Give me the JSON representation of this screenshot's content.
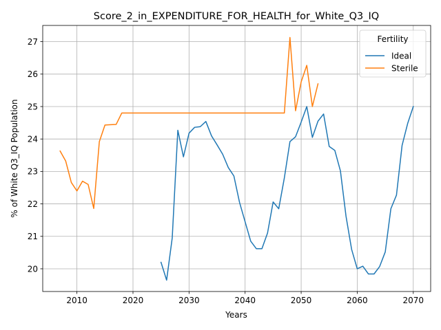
{
  "chart_data": {
    "type": "line",
    "title": "Score_2_in_EXPENDITURE_FOR_HEALTH_for_White_Q3_IQ",
    "xlabel": "Years",
    "ylabel": "% of White Q3_IQ Population",
    "xlim": [
      2003.9,
      2073.1
    ],
    "ylim": [
      19.3,
      27.5
    ],
    "xticks": [
      2010,
      2020,
      2030,
      2040,
      2050,
      2060,
      2070
    ],
    "yticks": [
      20,
      21,
      22,
      23,
      24,
      25,
      26,
      27
    ],
    "grid": true,
    "legend": {
      "title": "Fertility",
      "placement": "top-right"
    },
    "series": [
      {
        "name": "Ideal",
        "color": "#1f77b4",
        "x": [
          2025,
          2026,
          2027,
          2028,
          2029,
          2030,
          2031,
          2032,
          2033,
          2034,
          2035,
          2036,
          2037,
          2038,
          2039,
          2040,
          2041,
          2042,
          2043,
          2044,
          2045,
          2046,
          2047,
          2048,
          2049,
          2050,
          2051,
          2052,
          2053,
          2054,
          2055,
          2056,
          2057,
          2058,
          2059,
          2060,
          2061,
          2062,
          2063,
          2064,
          2065,
          2066,
          2067,
          2068,
          2069,
          2070
        ],
        "y": [
          20.2,
          19.65,
          20.95,
          24.27,
          23.45,
          24.18,
          24.36,
          24.38,
          24.54,
          24.1,
          23.82,
          23.53,
          23.12,
          22.86,
          22.05,
          21.45,
          20.85,
          20.62,
          20.62,
          21.1,
          22.06,
          21.85,
          22.8,
          23.92,
          24.07,
          24.52,
          25.0,
          24.05,
          24.55,
          24.77,
          23.77,
          23.65,
          23.02,
          21.62,
          20.6,
          20.0,
          20.08,
          19.84,
          19.84,
          20.07,
          20.52,
          21.85,
          22.27,
          23.8,
          24.48,
          25.0
        ]
      },
      {
        "name": "Sterile",
        "color": "#ff7f0e",
        "x": [
          2007,
          2008,
          2009,
          2010,
          2011,
          2012,
          2013,
          2014,
          2015,
          2016,
          2017,
          2018,
          2019,
          2020,
          2025,
          2030,
          2035,
          2040,
          2045,
          2046,
          2047,
          2048,
          2049,
          2050,
          2051,
          2052,
          2053
        ],
        "y": [
          23.63,
          23.32,
          22.66,
          22.4,
          22.7,
          22.6,
          21.86,
          23.92,
          24.43,
          24.44,
          24.45,
          24.8,
          24.8,
          24.8,
          24.8,
          24.8,
          24.8,
          24.8,
          24.8,
          24.8,
          24.8,
          27.13,
          24.87,
          25.76,
          26.27,
          25.0,
          25.7
        ]
      }
    ]
  }
}
